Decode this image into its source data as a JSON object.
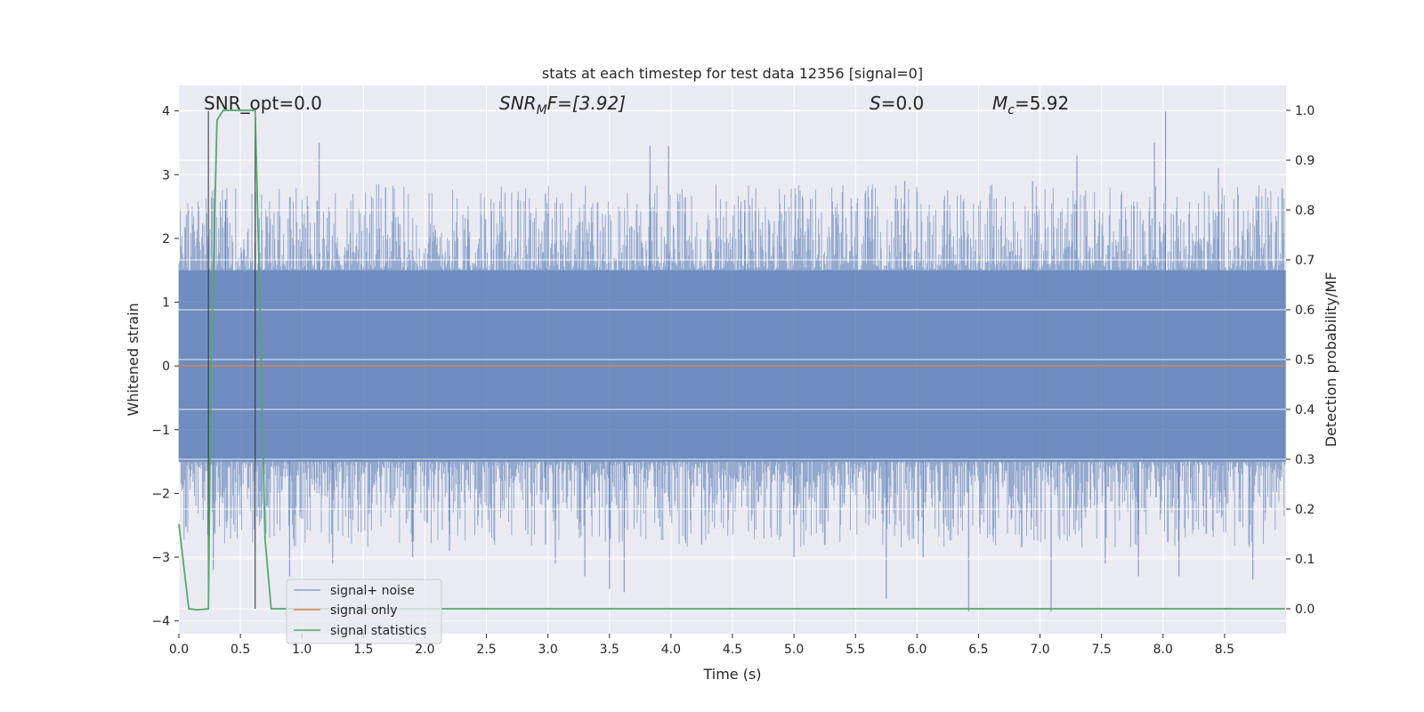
{
  "chart_data": {
    "type": "line",
    "title": "stats at each timestep for test data 12356 [signal=0]",
    "xlabel": "Time (s)",
    "ylabel_left": "Whitened strain",
    "ylabel_right": "Detection probability/MF",
    "xlim": [
      0.0,
      9.0
    ],
    "ylim_left": [
      -4.2,
      4.4
    ],
    "ylim_right": [
      -0.05,
      1.05
    ],
    "x_ticks": [
      "0.0",
      "0.5",
      "1.0",
      "1.5",
      "2.0",
      "2.5",
      "3.0",
      "3.5",
      "4.0",
      "4.5",
      "5.0",
      "5.5",
      "6.0",
      "6.5",
      "7.0",
      "7.5",
      "8.0",
      "8.5"
    ],
    "y_ticks_left": [
      "4",
      "3",
      "2",
      "1",
      "0",
      "−1",
      "−2",
      "−3",
      "−4"
    ],
    "y_ticks_right": [
      "1.0",
      "0.9",
      "0.8",
      "0.7",
      "0.6",
      "0.5",
      "0.4",
      "0.3",
      "0.2",
      "0.1",
      "0.0"
    ],
    "grid": true,
    "legend_position": "lower-left",
    "colors": {
      "background": "#eaeaf2",
      "grid": "#ffffff",
      "noise": "#4c72b0",
      "signal": "#dd8452",
      "statistics": "#55a868",
      "marker": "#333333"
    },
    "annotations": {
      "snr_opt": "SNR_opt=0.0",
      "snr_mf_base": "SNR",
      "snr_mf_sub": "M",
      "snr_mf_rest": "F=[3.92]",
      "s_label": "S",
      "s_value": "=0.0",
      "mc_base": "M",
      "mc_sub": "c",
      "mc_value": "=5.92"
    },
    "series": [
      {
        "name": "signal+ noise",
        "description_kind": "noise",
        "amplitude_core": 1.5,
        "y_min": -3.85,
        "y_max": 4.0
      },
      {
        "name": "signal only",
        "values_constant": 0.0
      },
      {
        "name": "signal statistics",
        "axis": "right",
        "x": [
          0.0,
          0.08,
          0.15,
          0.24,
          0.26,
          0.31,
          0.36,
          0.45,
          0.55,
          0.62,
          0.66,
          0.7,
          0.75,
          0.8,
          9.0
        ],
        "y": [
          0.17,
          0.0,
          -0.002,
          0.0,
          0.46,
          0.98,
          1.0,
          1.0,
          1.0,
          1.0,
          0.6,
          0.14,
          0.0,
          0.0,
          0.0
        ]
      }
    ],
    "markers_x": [
      0.24,
      0.62
    ],
    "noise_spikes": [
      {
        "x": 1.14,
        "y": 3.5
      },
      {
        "x": 3.83,
        "y": 3.45
      },
      {
        "x": 3.98,
        "y": 3.45
      },
      {
        "x": 7.3,
        "y": 3.3
      },
      {
        "x": 7.93,
        "y": 3.5
      },
      {
        "x": 8.02,
        "y": 4.0
      },
      {
        "x": 8.45,
        "y": 3.1
      },
      {
        "x": 0.38,
        "y": 2.6
      },
      {
        "x": 1.68,
        "y": 2.8
      },
      {
        "x": 2.35,
        "y": 2.3
      },
      {
        "x": 2.98,
        "y": 2.7
      },
      {
        "x": 4.6,
        "y": 2.6
      },
      {
        "x": 5.9,
        "y": 2.9
      },
      {
        "x": 6.94,
        "y": 2.9
      },
      {
        "x": 0.28,
        "y": -3.2
      },
      {
        "x": 0.9,
        "y": -3.3
      },
      {
        "x": 1.25,
        "y": -3.1
      },
      {
        "x": 1.9,
        "y": -3.0
      },
      {
        "x": 2.2,
        "y": -2.9
      },
      {
        "x": 3.06,
        "y": -3.1
      },
      {
        "x": 3.3,
        "y": -3.3
      },
      {
        "x": 3.5,
        "y": -3.5
      },
      {
        "x": 3.62,
        "y": -3.55
      },
      {
        "x": 5.0,
        "y": -3.0
      },
      {
        "x": 5.75,
        "y": -3.65
      },
      {
        "x": 6.42,
        "y": -3.85
      },
      {
        "x": 7.09,
        "y": -3.85
      },
      {
        "x": 7.53,
        "y": -3.1
      },
      {
        "x": 7.8,
        "y": -3.3
      },
      {
        "x": 8.13,
        "y": -3.3
      },
      {
        "x": 8.73,
        "y": -3.35
      },
      {
        "x": 4.25,
        "y": -2.8
      },
      {
        "x": 6.05,
        "y": -3.0
      },
      {
        "x": 2.98,
        "y": -2.8
      }
    ]
  }
}
